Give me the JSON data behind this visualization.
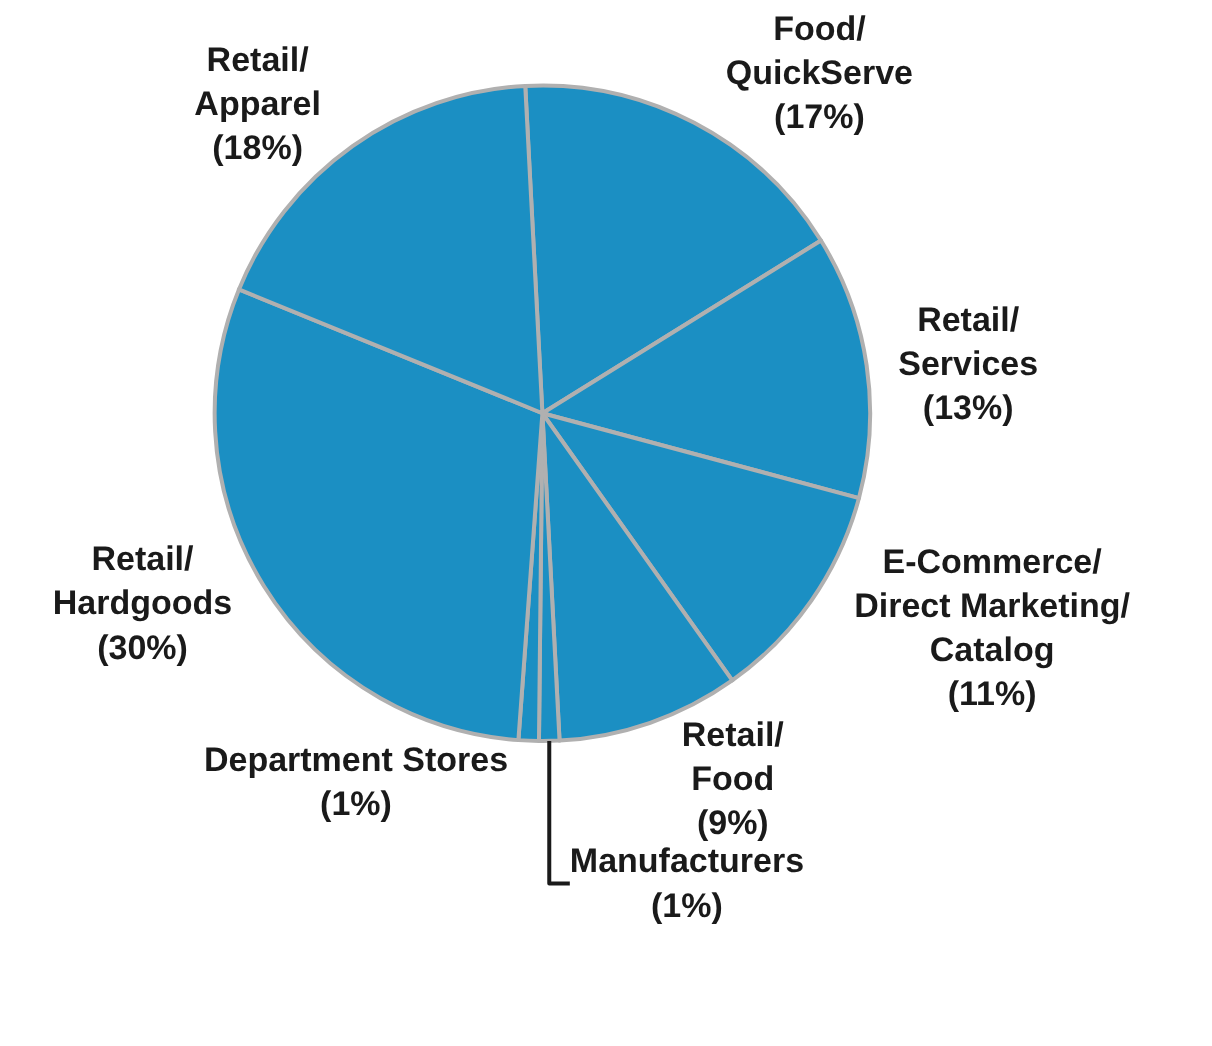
{
  "chart_data": {
    "type": "pie",
    "categories": [
      "Food/\nQuickServe",
      "Retail/\nServices",
      "E-Commerce/\nDirect Marketing/\nCatalog",
      "Retail/\nFood",
      "Manufacturers",
      "Department Stores",
      "Retail/\nHardgoods",
      "Retail/\nApparel"
    ],
    "values": [
      17,
      13,
      11,
      9,
      1,
      1,
      30,
      18
    ],
    "value_labels": [
      "(17%)",
      "(13%)",
      "(11%)",
      "(9%)",
      "(1%)",
      "(1%)",
      "(30%)",
      "(18%)"
    ],
    "colors": [
      "#1b8fc3",
      "#1b8fc3",
      "#1b8fc3",
      "#1b8fc3",
      "#1b8fc3",
      "#1b8fc3",
      "#1b8fc3",
      "#1b8fc3"
    ],
    "legend": false
  }
}
